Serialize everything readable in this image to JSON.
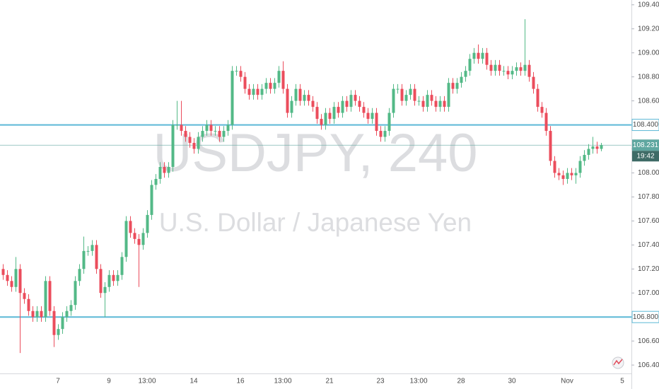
{
  "chart_data": {
    "type": "candlestick",
    "watermark_title": "USDJPY, 240",
    "watermark_subtitle": "U.S. Dollar / Japanese Yen",
    "categories": [
      null,
      null,
      null,
      null,
      null,
      null,
      null,
      null,
      null,
      null,
      null,
      null,
      null,
      "7",
      null,
      null,
      null,
      null,
      null,
      null,
      null,
      null,
      null,
      null,
      null,
      "9",
      null,
      null,
      null,
      null,
      null,
      null,
      null,
      null,
      "13:00",
      null,
      null,
      null,
      null,
      null,
      null,
      null,
      null,
      null,
      null,
      "14",
      null,
      null,
      null,
      null,
      null,
      null,
      null,
      null,
      null,
      null,
      "16",
      null,
      null,
      null,
      null,
      null,
      null,
      null,
      null,
      null,
      "13:00",
      null,
      null,
      null,
      null,
      null,
      null,
      null,
      null,
      null,
      null,
      "21",
      null,
      null,
      null,
      null,
      null,
      null,
      null,
      null,
      null,
      null,
      null,
      "23",
      null,
      null,
      null,
      null,
      null,
      null,
      null,
      null,
      "13:00",
      null,
      null,
      null,
      null,
      null,
      null,
      null,
      null,
      null,
      "28",
      null,
      null,
      null,
      null,
      null,
      null,
      null,
      null,
      null,
      null,
      null,
      "30",
      null,
      null,
      null,
      null,
      null,
      null,
      null,
      null,
      null,
      null,
      null,
      null,
      "Nov",
      null,
      null,
      null,
      null,
      null,
      null,
      null,
      null,
      null,
      null,
      null,
      null,
      "5"
    ],
    "series": {
      "open": [
        107.2,
        107.15,
        107.1,
        107.05,
        107.2,
        107.0,
        106.95,
        106.85,
        106.8,
        106.85,
        106.8,
        107.1,
        106.85,
        106.65,
        106.7,
        106.8,
        106.85,
        106.9,
        107.1,
        107.2,
        107.35,
        107.35,
        107.4,
        107.2,
        107.0,
        107.05,
        107.15,
        107.1,
        107.15,
        107.3,
        107.6,
        107.5,
        107.45,
        107.4,
        107.5,
        107.65,
        107.9,
        107.95,
        108.05,
        108.0,
        108.05,
        108.4,
        108.4,
        108.35,
        108.3,
        108.25,
        108.2,
        108.3,
        108.35,
        108.4,
        108.35,
        108.35,
        108.3,
        108.35,
        108.4,
        108.85,
        108.85,
        108.8,
        108.7,
        108.65,
        108.7,
        108.65,
        108.7,
        108.75,
        108.7,
        108.75,
        108.85,
        108.7,
        108.5,
        108.6,
        108.7,
        108.6,
        108.65,
        108.6,
        108.55,
        108.45,
        108.4,
        108.5,
        108.45,
        108.55,
        108.5,
        108.6,
        108.55,
        108.65,
        108.6,
        108.55,
        108.5,
        108.45,
        108.5,
        108.35,
        108.3,
        108.35,
        108.5,
        108.7,
        108.7,
        108.6,
        108.65,
        108.7,
        108.6,
        108.6,
        108.55,
        108.65,
        108.6,
        108.55,
        108.6,
        108.55,
        108.75,
        108.7,
        108.75,
        108.8,
        108.85,
        108.95,
        109.0,
        108.95,
        109.0,
        108.9,
        108.85,
        108.9,
        108.85,
        108.85,
        108.82,
        108.85,
        108.88,
        108.85,
        108.9,
        108.8,
        108.7,
        108.55,
        108.5,
        108.35,
        108.1,
        108.0,
        107.98,
        107.95,
        108.0,
        107.98,
        108.0,
        108.1,
        108.15,
        108.2,
        108.22,
        108.2,
        null,
        null,
        null,
        null,
        null
      ],
      "high": [
        107.24,
        107.19,
        107.14,
        107.3,
        107.24,
        107.04,
        106.99,
        106.89,
        106.89,
        106.89,
        107.14,
        107.14,
        106.89,
        106.74,
        106.84,
        106.89,
        106.94,
        107.14,
        107.24,
        107.47,
        107.39,
        107.44,
        107.44,
        107.24,
        107.09,
        107.19,
        107.19,
        107.19,
        107.34,
        107.64,
        107.64,
        107.54,
        107.49,
        107.54,
        107.69,
        107.94,
        107.99,
        108.09,
        108.09,
        108.09,
        108.44,
        108.6,
        108.6,
        108.39,
        108.34,
        108.29,
        108.34,
        108.39,
        108.44,
        108.44,
        108.39,
        108.39,
        108.39,
        108.44,
        108.89,
        108.89,
        108.89,
        108.84,
        108.74,
        108.74,
        108.74,
        108.74,
        108.79,
        108.79,
        108.79,
        108.89,
        108.93,
        108.74,
        108.64,
        108.74,
        108.74,
        108.69,
        108.69,
        108.64,
        108.59,
        108.49,
        108.54,
        108.54,
        108.59,
        108.59,
        108.64,
        108.64,
        108.69,
        108.69,
        108.64,
        108.59,
        108.54,
        108.54,
        108.54,
        108.39,
        108.39,
        108.54,
        108.74,
        108.74,
        108.74,
        108.69,
        108.74,
        108.74,
        108.64,
        108.64,
        108.69,
        108.69,
        108.64,
        108.64,
        108.64,
        108.79,
        108.79,
        108.79,
        108.84,
        108.89,
        108.99,
        109.04,
        109.07,
        109.04,
        109.04,
        108.94,
        108.94,
        108.94,
        108.89,
        108.89,
        108.89,
        108.92,
        108.92,
        109.28,
        108.94,
        108.84,
        108.74,
        108.59,
        108.54,
        108.39,
        108.14,
        108.04,
        108.02,
        108.04,
        108.04,
        108.04,
        108.14,
        108.19,
        108.24,
        108.3,
        108.26,
        108.25,
        null,
        null,
        null,
        null,
        null
      ],
      "low": [
        107.11,
        107.06,
        107.01,
        107.01,
        106.5,
        106.91,
        106.81,
        106.76,
        106.76,
        106.76,
        106.76,
        106.81,
        106.55,
        106.61,
        106.66,
        106.76,
        106.81,
        106.86,
        107.06,
        107.16,
        107.31,
        107.31,
        107.16,
        106.96,
        106.8,
        107.01,
        107.06,
        107.06,
        107.11,
        107.26,
        107.46,
        107.41,
        107.05,
        107.36,
        107.46,
        107.61,
        107.86,
        107.91,
        107.96,
        107.96,
        108.01,
        108.36,
        108.31,
        108.26,
        108.21,
        108.16,
        108.16,
        108.26,
        108.31,
        108.31,
        108.31,
        108.26,
        108.26,
        108.31,
        108.36,
        108.81,
        108.76,
        108.66,
        108.61,
        108.61,
        108.61,
        108.61,
        108.66,
        108.66,
        108.66,
        108.71,
        108.66,
        108.46,
        108.46,
        108.56,
        108.56,
        108.56,
        108.56,
        108.51,
        108.41,
        108.36,
        108.36,
        108.41,
        108.41,
        108.46,
        108.46,
        108.51,
        108.51,
        108.56,
        108.51,
        108.46,
        108.41,
        108.41,
        108.31,
        108.26,
        108.26,
        108.31,
        108.46,
        108.66,
        108.56,
        108.56,
        108.61,
        108.56,
        108.56,
        108.51,
        108.51,
        108.56,
        108.51,
        108.51,
        108.51,
        108.51,
        108.66,
        108.66,
        108.71,
        108.76,
        108.81,
        108.91,
        108.91,
        108.91,
        108.86,
        108.81,
        108.81,
        108.81,
        108.81,
        108.78,
        108.78,
        108.81,
        108.81,
        108.81,
        108.76,
        108.66,
        108.51,
        108.46,
        108.31,
        108.06,
        107.96,
        107.94,
        107.9,
        107.91,
        107.94,
        107.91,
        107.96,
        108.06,
        108.11,
        108.16,
        108.16,
        108.18,
        null,
        null,
        null,
        null,
        null
      ],
      "close": [
        107.15,
        107.1,
        107.05,
        107.2,
        107.0,
        106.95,
        106.85,
        106.8,
        106.85,
        106.8,
        107.1,
        106.85,
        106.65,
        106.7,
        106.8,
        106.85,
        106.9,
        107.1,
        107.2,
        107.35,
        107.35,
        107.4,
        107.2,
        107.0,
        107.05,
        107.15,
        107.1,
        107.15,
        107.3,
        107.6,
        107.5,
        107.45,
        107.4,
        107.5,
        107.65,
        107.9,
        107.95,
        108.05,
        108.0,
        108.05,
        108.4,
        108.4,
        108.35,
        108.3,
        108.25,
        108.2,
        108.3,
        108.35,
        108.4,
        108.35,
        108.35,
        108.3,
        108.35,
        108.4,
        108.85,
        108.85,
        108.8,
        108.7,
        108.65,
        108.7,
        108.65,
        108.7,
        108.75,
        108.7,
        108.75,
        108.85,
        108.7,
        108.5,
        108.6,
        108.7,
        108.6,
        108.65,
        108.6,
        108.55,
        108.45,
        108.4,
        108.5,
        108.45,
        108.55,
        108.5,
        108.6,
        108.55,
        108.65,
        108.6,
        108.55,
        108.5,
        108.45,
        108.5,
        108.35,
        108.3,
        108.35,
        108.5,
        108.7,
        108.7,
        108.6,
        108.65,
        108.7,
        108.6,
        108.6,
        108.55,
        108.65,
        108.6,
        108.55,
        108.6,
        108.55,
        108.75,
        108.7,
        108.75,
        108.8,
        108.85,
        108.95,
        109.0,
        108.95,
        109.0,
        108.9,
        108.85,
        108.9,
        108.85,
        108.85,
        108.82,
        108.85,
        108.88,
        108.85,
        108.9,
        108.8,
        108.7,
        108.55,
        108.5,
        108.35,
        108.1,
        108.0,
        107.98,
        107.95,
        108.0,
        107.98,
        108.0,
        108.1,
        108.15,
        108.2,
        108.22,
        108.2,
        108.231,
        null,
        null,
        null,
        null,
        null
      ]
    },
    "up_color": "#53b987",
    "down_color": "#eb4d5c",
    "ylim": [
      106.33,
      109.44
    ],
    "yticks": [
      {
        "value": 106.4,
        "label": "106.400"
      },
      {
        "value": 106.6,
        "label": "106.600"
      },
      {
        "value": 106.8,
        "label": "106.800"
      },
      {
        "value": 107.0,
        "label": "107.000"
      },
      {
        "value": 107.2,
        "label": "107.200"
      },
      {
        "value": 107.4,
        "label": "107.400"
      },
      {
        "value": 107.6,
        "label": "107.600"
      },
      {
        "value": 107.8,
        "label": "107.800"
      },
      {
        "value": 108.0,
        "label": "108.000"
      },
      {
        "value": 108.2,
        "label": "108.200"
      },
      {
        "value": 108.4,
        "label": "108.400"
      },
      {
        "value": 108.6,
        "label": "108.600"
      },
      {
        "value": 108.8,
        "label": "108.800"
      },
      {
        "value": 109.0,
        "label": "109.000"
      },
      {
        "value": 109.2,
        "label": "109.200"
      },
      {
        "value": 109.4,
        "label": "109.400"
      }
    ],
    "horizontal_lines": [
      {
        "value": 108.4,
        "label": "108.400",
        "color": "#5cb8d6"
      },
      {
        "value": 106.8,
        "label": "106.800",
        "color": "#5cb8d6"
      }
    ],
    "last_price": {
      "value": 108.231,
      "label": "108.231",
      "color": "#5fa7a0"
    },
    "countdown": "19:42"
  }
}
